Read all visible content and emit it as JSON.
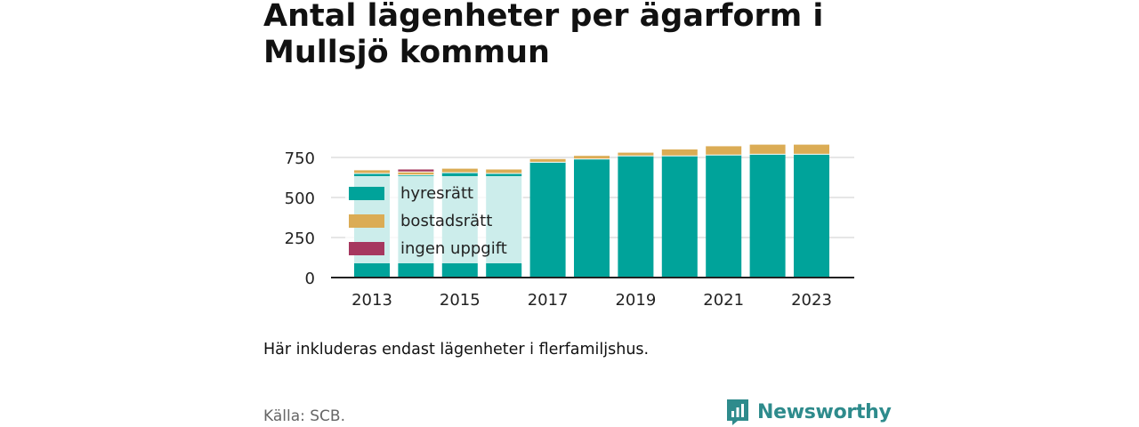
{
  "header": {
    "title_line1": "Antal lägenheter per ägarform i",
    "title_line2": "Mullsjö kommun"
  },
  "note": "Här inkluderas endast lägenheter i flerfamiljshus.",
  "source": "Källa: SCB.",
  "brand": {
    "name": "Newsworthy",
    "icon": "newsworthy-logo-icon"
  },
  "colors": {
    "hyresratt": "#00a39a",
    "bostadsratt": "#dbac55",
    "ingen_uppgift": "#a6385f",
    "axis": "#222222",
    "grid": "#dddddd"
  },
  "chart_data": {
    "type": "bar",
    "stacked": true,
    "title": "Antal lägenheter per ägarform i Mullsjö kommun",
    "categories": [
      "2013",
      "2014",
      "2015",
      "2016",
      "2017",
      "2018",
      "2019",
      "2020",
      "2021",
      "2022",
      "2023"
    ],
    "x_tick_labels": [
      "2013",
      "2015",
      "2017",
      "2019",
      "2021",
      "2023"
    ],
    "y_ticks": [
      "0",
      "250",
      "500",
      "750"
    ],
    "ylim": [
      0,
      850
    ],
    "grid": true,
    "legend_position": "top-left",
    "series": [
      {
        "name": "hyresrätt",
        "values": [
          650,
          640,
          655,
          650,
          720,
          740,
          760,
          760,
          765,
          770,
          770
        ]
      },
      {
        "name": "bostadsrätt",
        "values": [
          20,
          20,
          25,
          25,
          20,
          20,
          20,
          40,
          55,
          60,
          60
        ]
      },
      {
        "name": "ingen uppgift",
        "values": [
          0,
          15,
          0,
          0,
          0,
          0,
          0,
          0,
          0,
          0,
          0
        ]
      }
    ]
  }
}
